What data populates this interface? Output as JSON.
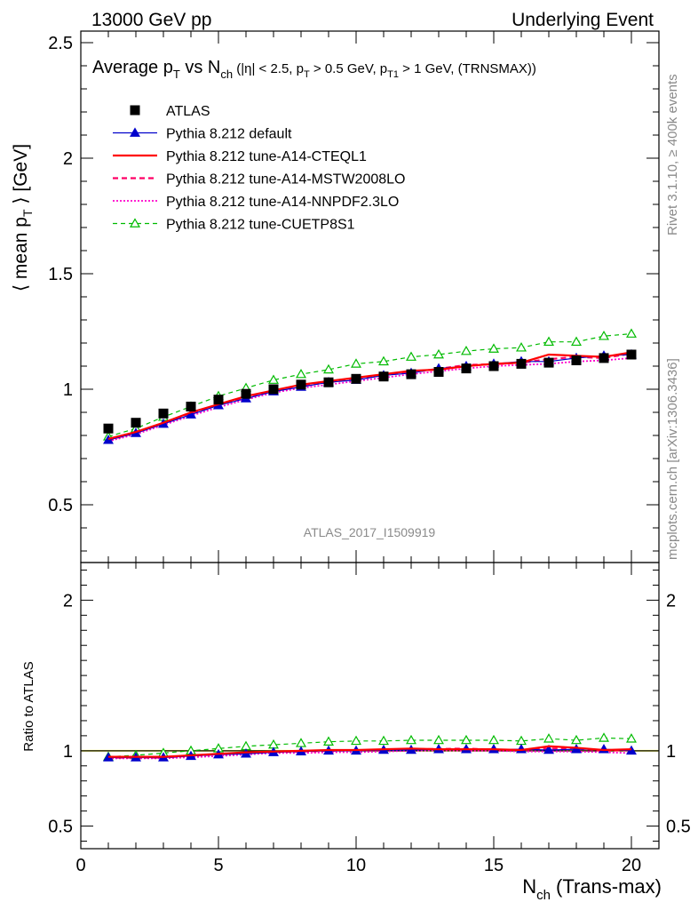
{
  "header": {
    "left": "13000 GeV pp",
    "right": "Underlying Event"
  },
  "side_labels": {
    "rivet": "Rivet 3.1.10, ≥ 400k events",
    "mcplots": "mcplots.cern.ch [arXiv:1306.3436]"
  },
  "watermark": "ATLAS_2017_I1509919",
  "colors": {
    "atlas": "#000000",
    "default": "#0000cc",
    "cteql1": "#ff0000",
    "mstw": "#ff0066",
    "nnpdf": "#ff00cc",
    "cuetp8s1": "#00bb00",
    "ratio_band": "#ffff66"
  },
  "chart_data": [
    {
      "type": "line",
      "title_parts": {
        "a": "Average p",
        "a_sub": "T",
        "b": " vs N",
        "b_sub": "ch",
        "c": " (|η| < 2.5, p",
        "c_sub": "T",
        "d": " > 0.5 GeV, p",
        "d_sub": "T1",
        "e": " > 1 GeV, (TRNSMAX))"
      },
      "ylabel_parts": {
        "a": "⟨ mean p",
        "a_sub": "T",
        "b": " ⟩ [GeV]"
      },
      "xlim": [
        0,
        21
      ],
      "ylim": [
        0.25,
        2.55
      ],
      "yticks": [
        0.5,
        1,
        1.5,
        2,
        2.5
      ],
      "ytick_labels": [
        "0.5",
        "1",
        "1.5",
        "2",
        "2.5"
      ],
      "legend_position": "top-left",
      "x": [
        1,
        2,
        3,
        4,
        5,
        6,
        7,
        8,
        9,
        10,
        11,
        12,
        13,
        14,
        15,
        16,
        17,
        18,
        19,
        20
      ],
      "series": [
        {
          "key": "atlas",
          "name": "ATLAS",
          "values": [
            0.83,
            0.855,
            0.895,
            0.925,
            0.955,
            0.98,
            1.0,
            1.02,
            1.03,
            1.045,
            1.055,
            1.065,
            1.075,
            1.09,
            1.1,
            1.11,
            1.115,
            1.125,
            1.135,
            1.15
          ]
        },
        {
          "key": "default",
          "name": "Pythia 8.212 default",
          "values": [
            0.78,
            0.81,
            0.85,
            0.89,
            0.93,
            0.96,
            0.99,
            1.01,
            1.03,
            1.04,
            1.06,
            1.07,
            1.09,
            1.1,
            1.11,
            1.12,
            1.12,
            1.135,
            1.145,
            1.15
          ]
        },
        {
          "key": "cteql1",
          "name": "Pythia 8.212 tune-A14-CTEQL1",
          "values": [
            0.785,
            0.815,
            0.855,
            0.9,
            0.935,
            0.97,
            0.995,
            1.02,
            1.035,
            1.05,
            1.065,
            1.08,
            1.085,
            1.1,
            1.11,
            1.115,
            1.15,
            1.145,
            1.14,
            1.16
          ]
        },
        {
          "key": "mstw",
          "name": "Pythia 8.212 tune-A14-MSTW2008LO",
          "values": [
            0.78,
            0.812,
            0.852,
            0.895,
            0.932,
            0.965,
            0.992,
            1.015,
            1.03,
            1.048,
            1.062,
            1.075,
            1.088,
            1.105,
            1.108,
            1.115,
            1.13,
            1.14,
            1.135,
            1.155
          ]
        },
        {
          "key": "nnpdf",
          "name": "Pythia 8.212 tune-A14-NNPDF2.3LO",
          "values": [
            0.775,
            0.805,
            0.845,
            0.885,
            0.922,
            0.955,
            0.985,
            1.005,
            1.02,
            1.035,
            1.05,
            1.065,
            1.078,
            1.09,
            1.1,
            1.105,
            1.11,
            1.12,
            1.125,
            1.135
          ]
        },
        {
          "key": "cuetp8s1",
          "name": "Pythia 8.212 tune-CUETP8S1",
          "values": [
            0.795,
            0.83,
            0.88,
            0.925,
            0.97,
            1.005,
            1.04,
            1.065,
            1.085,
            1.11,
            1.12,
            1.14,
            1.15,
            1.165,
            1.175,
            1.18,
            1.205,
            1.205,
            1.23,
            1.24
          ]
        }
      ]
    },
    {
      "type": "line",
      "ylabel": "Ratio to ATLAS",
      "xlabel_parts": {
        "a": "N",
        "a_sub": "ch",
        "b": " (Trans-max)"
      },
      "xlim": [
        0,
        21
      ],
      "ylim": [
        0.35,
        2.25
      ],
      "xticks": [
        0,
        5,
        10,
        15,
        20
      ],
      "xtick_labels": [
        "0",
        "5",
        "10",
        "15",
        "20"
      ],
      "yticks": [
        0.5,
        1,
        2
      ],
      "ytick_labels": [
        "0.5",
        "1",
        "2"
      ],
      "x": [
        1,
        2,
        3,
        4,
        5,
        6,
        7,
        8,
        9,
        10,
        11,
        12,
        13,
        14,
        15,
        16,
        17,
        18,
        19,
        20
      ],
      "series": [
        {
          "key": "default",
          "values": [
            0.955,
            0.955,
            0.955,
            0.965,
            0.975,
            0.98,
            0.99,
            0.995,
            1.0,
            1.0,
            1.005,
            1.005,
            1.01,
            1.01,
            1.01,
            1.01,
            1.005,
            1.01,
            1.01,
            1.0
          ]
        },
        {
          "key": "cteql1",
          "values": [
            0.96,
            0.96,
            0.96,
            0.97,
            0.98,
            0.99,
            0.995,
            1.0,
            1.005,
            1.005,
            1.01,
            1.015,
            1.01,
            1.01,
            1.01,
            1.005,
            1.03,
            1.02,
            1.005,
            1.01
          ]
        },
        {
          "key": "mstw",
          "values": [
            0.955,
            0.955,
            0.955,
            0.967,
            0.976,
            0.985,
            0.992,
            0.995,
            1.0,
            1.003,
            1.007,
            1.01,
            1.012,
            1.015,
            1.008,
            1.005,
            1.015,
            1.015,
            1.0,
            1.005
          ]
        },
        {
          "key": "nnpdf",
          "values": [
            0.95,
            0.95,
            0.95,
            0.957,
            0.965,
            0.975,
            0.985,
            0.985,
            0.99,
            0.99,
            0.995,
            1.0,
            1.003,
            1.0,
            1.0,
            0.995,
            0.995,
            0.995,
            0.99,
            0.985
          ]
        },
        {
          "key": "cuetp8s1",
          "values": [
            0.96,
            0.97,
            0.985,
            1.0,
            1.015,
            1.03,
            1.04,
            1.05,
            1.06,
            1.065,
            1.065,
            1.07,
            1.07,
            1.07,
            1.07,
            1.065,
            1.08,
            1.07,
            1.085,
            1.08
          ]
        }
      ]
    }
  ]
}
